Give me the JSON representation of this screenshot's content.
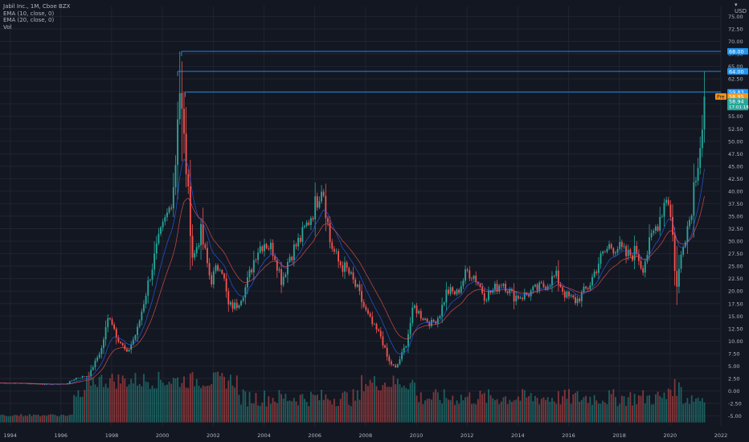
{
  "legend": {
    "symbol": "Jabil Inc., 1M, Cboe BZX",
    "ema1": "EMA (10, close, 0)",
    "ema2": "EMA (20, close, 0)",
    "vol": "Vol"
  },
  "currency": "USD",
  "colors": {
    "background": "#131722",
    "grid": "#1f2430",
    "up": "#26a69a",
    "down": "#ef5350",
    "ema10": "#2962ff",
    "ema20": "#ef5350",
    "hline": "#2196f3",
    "pre_badge": "#f7931a",
    "last_badge": "#26a69a",
    "axis_text": "#b2b5be"
  },
  "chart_data": {
    "type": "candlestick",
    "interval": "1M",
    "x_range": [
      1993.6,
      2022.0
    ],
    "x_ticks": [
      "1994",
      "1996",
      "1998",
      "2000",
      "2002",
      "2004",
      "2006",
      "2008",
      "2010",
      "2012",
      "2014",
      "2016",
      "2018",
      "2020",
      "2022"
    ],
    "y_range": [
      -7.0,
      77.0
    ],
    "y_ticks": [
      "-5.00",
      "-2.50",
      "0.00",
      "2.50",
      "5.00",
      "7.50",
      "10.00",
      "12.50",
      "15.00",
      "17.50",
      "20.00",
      "22.50",
      "25.00",
      "27.50",
      "30.00",
      "32.50",
      "35.00",
      "37.50",
      "40.00",
      "42.50",
      "45.00",
      "47.50",
      "50.00",
      "52.50",
      "55.00",
      "57.50",
      "60.00",
      "62.50",
      "65.00",
      "67.50",
      "70.00",
      "72.50",
      "75.00"
    ],
    "grid": true,
    "horizontal_lines": [
      {
        "price": 68.0,
        "start": 2000.75
      },
      {
        "price": 64.0,
        "start": 2000.6
      },
      {
        "price": 59.83,
        "start": 2000.9
      }
    ],
    "price_badges": [
      {
        "text": "68.00",
        "kind": "level"
      },
      {
        "text": "64.00",
        "kind": "level"
      },
      {
        "text": "59.83",
        "kind": "level"
      },
      {
        "text": "58.95",
        "kind": "pre",
        "label": "Pre"
      },
      {
        "text": "58.94",
        "kind": "last",
        "sub": "17:01:18"
      }
    ],
    "close_anchors": [
      [
        1993.6,
        1.6
      ],
      [
        1994.5,
        1.5
      ],
      [
        1995.5,
        1.3
      ],
      [
        1996.2,
        1.4
      ],
      [
        1996.6,
        2.6
      ],
      [
        1997.1,
        3.1
      ],
      [
        1997.6,
        8.5
      ],
      [
        1997.9,
        15.5
      ],
      [
        1998.2,
        11
      ],
      [
        1998.6,
        7.5
      ],
      [
        1999.0,
        12
      ],
      [
        1999.5,
        23
      ],
      [
        1999.8,
        29
      ],
      [
        2000.3,
        37
      ],
      [
        2000.5,
        44
      ],
      [
        2000.65,
        62.5
      ],
      [
        2000.9,
        47
      ],
      [
        2001.2,
        26
      ],
      [
        2001.5,
        32
      ],
      [
        2001.9,
        22
      ],
      [
        2002.3,
        26
      ],
      [
        2002.6,
        17
      ],
      [
        2002.9,
        17
      ],
      [
        2003.3,
        21
      ],
      [
        2003.7,
        28
      ],
      [
        2004.0,
        30
      ],
      [
        2004.4,
        28
      ],
      [
        2004.7,
        22
      ],
      [
        2005.0,
        27
      ],
      [
        2005.5,
        31
      ],
      [
        2006.0,
        37
      ],
      [
        2006.3,
        42
      ],
      [
        2006.6,
        30
      ],
      [
        2006.9,
        26
      ],
      [
        2007.3,
        24
      ],
      [
        2007.7,
        20
      ],
      [
        2008.0,
        16
      ],
      [
        2008.3,
        13
      ],
      [
        2008.6,
        11
      ],
      [
        2008.9,
        6
      ],
      [
        2009.2,
        4.5
      ],
      [
        2009.6,
        9.5
      ],
      [
        2009.9,
        17
      ],
      [
        2010.2,
        15
      ],
      [
        2010.6,
        13.5
      ],
      [
        2010.9,
        15
      ],
      [
        2011.2,
        20
      ],
      [
        2011.6,
        19.5
      ],
      [
        2012.0,
        24
      ],
      [
        2012.3,
        23
      ],
      [
        2012.7,
        19
      ],
      [
        2013.0,
        20
      ],
      [
        2013.4,
        22
      ],
      [
        2013.8,
        19
      ],
      [
        2014.2,
        19
      ],
      [
        2014.6,
        20
      ],
      [
        2015.0,
        21
      ],
      [
        2015.5,
        23
      ],
      [
        2015.9,
        19
      ],
      [
        2016.3,
        18
      ],
      [
        2016.8,
        21
      ],
      [
        2017.2,
        26
      ],
      [
        2017.6,
        29
      ],
      [
        2017.9,
        29
      ],
      [
        2018.3,
        27
      ],
      [
        2018.7,
        28
      ],
      [
        2018.9,
        24.5
      ],
      [
        2019.3,
        31
      ],
      [
        2019.6,
        35
      ],
      [
        2019.9,
        40
      ],
      [
        2020.1,
        31
      ],
      [
        2020.25,
        20
      ],
      [
        2020.5,
        30
      ],
      [
        2020.8,
        35
      ],
      [
        2020.95,
        42
      ],
      [
        2021.1,
        47
      ],
      [
        2021.25,
        52
      ],
      [
        2021.4,
        58.94
      ]
    ],
    "highlight_wicks": [
      {
        "t": 2000.65,
        "high": 68.0,
        "low": 58
      },
      {
        "t": 2000.75,
        "high": 66.0,
        "low": 46
      },
      {
        "t": 2020.25,
        "high": 29,
        "low": 17.2
      }
    ],
    "volume_note": "relative volume bars at bottom band"
  }
}
